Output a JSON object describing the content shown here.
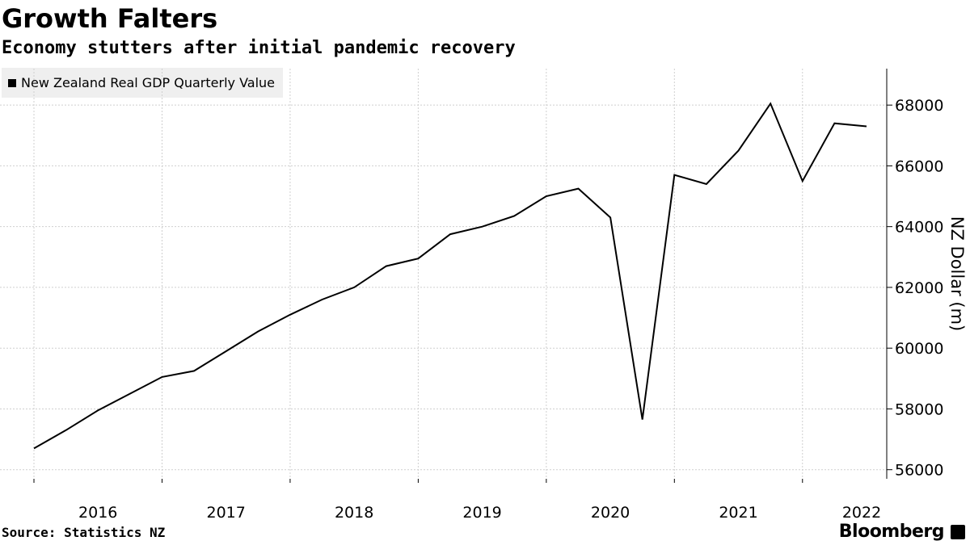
{
  "chart_data": {
    "type": "line",
    "title": "Growth Falters",
    "subtitle": "Economy stutters after initial pandemic recovery",
    "series": [
      {
        "name": "New Zealand Real GDP Quarterly Value",
        "color": "#000000",
        "x": [
          2015.25,
          2015.5,
          2015.75,
          2016.0,
          2016.25,
          2016.5,
          2016.75,
          2017.0,
          2017.25,
          2017.5,
          2017.75,
          2018.0,
          2018.25,
          2018.5,
          2018.75,
          2019.0,
          2019.25,
          2019.5,
          2019.75,
          2020.0,
          2020.25,
          2020.5,
          2020.75,
          2021.0,
          2021.25,
          2021.5,
          2021.75
        ],
        "values": [
          56700,
          57300,
          57950,
          58500,
          59050,
          59250,
          59900,
          60550,
          61100,
          61600,
          62000,
          62700,
          62950,
          63750,
          64000,
          64350,
          65000,
          65250,
          64300,
          57650,
          65700,
          65400,
          66500,
          68050,
          65500,
          67400,
          67300
        ]
      }
    ],
    "xlabel": "",
    "ylabel": "NZ Dollar (m)",
    "xticks": [
      2016,
      2017,
      2018,
      2019,
      2020,
      2021,
      2022
    ],
    "xtick_labels": [
      "2016",
      "2017",
      "2018",
      "2019",
      "2020",
      "2021",
      "2022"
    ],
    "yticks": [
      56000,
      58000,
      60000,
      62000,
      64000,
      66000,
      68000
    ],
    "ytick_labels": [
      "56000",
      "58000",
      "60000",
      "62000",
      "64000",
      "66000",
      "68000"
    ],
    "xlim": [
      2015.25,
      2021.75
    ],
    "ylim": [
      55700,
      69200
    ],
    "grid": true,
    "legend": "top-left"
  },
  "source": "Source: Statistics NZ",
  "brand": "Bloomberg"
}
